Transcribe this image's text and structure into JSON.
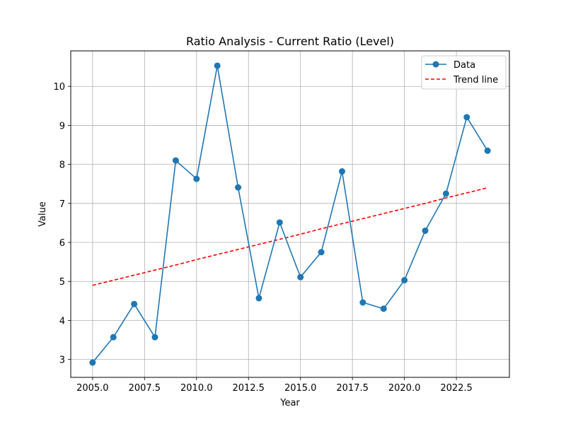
{
  "chart_data": {
    "type": "line",
    "title": "Ratio Analysis - Current Ratio (Level)",
    "xlabel": "Year",
    "ylabel": "Value",
    "x": [
      2005,
      2006,
      2007,
      2008,
      2009,
      2010,
      2011,
      2012,
      2013,
      2014,
      2015,
      2016,
      2017,
      2018,
      2019,
      2020,
      2021,
      2022,
      2023,
      2024
    ],
    "xlim": [
      2003.95,
      2025.05
    ],
    "ylim": [
      2.54,
      10.91
    ],
    "xticks": [
      2005.0,
      2007.5,
      2010.0,
      2012.5,
      2015.0,
      2017.5,
      2020.0,
      2022.5
    ],
    "xtick_labels": [
      "2005.0",
      "2007.5",
      "2010.0",
      "2012.5",
      "2015.0",
      "2017.5",
      "2020.0",
      "2022.5"
    ],
    "yticks": [
      3,
      4,
      5,
      6,
      7,
      8,
      9,
      10
    ],
    "ytick_labels": [
      "3",
      "4",
      "5",
      "6",
      "7",
      "8",
      "9",
      "10"
    ],
    "grid": true,
    "legend_position": "top-right",
    "series": [
      {
        "name": "Data",
        "style": "solid-line-circle-markers",
        "color": "#1f77b4",
        "values": [
          2.92,
          3.57,
          4.42,
          3.57,
          8.1,
          7.63,
          10.53,
          7.41,
          4.57,
          6.51,
          5.11,
          5.75,
          7.82,
          4.46,
          4.3,
          5.03,
          6.3,
          7.25,
          9.21,
          8.35
        ]
      },
      {
        "name": "Trend line",
        "style": "dashed",
        "color": "#ff0000",
        "values": [
          4.9,
          5.03,
          5.16,
          5.29,
          5.42,
          5.56,
          5.69,
          5.82,
          5.95,
          6.08,
          6.21,
          6.35,
          6.48,
          6.61,
          6.74,
          6.87,
          7.0,
          7.14,
          7.27,
          7.4
        ]
      }
    ]
  }
}
